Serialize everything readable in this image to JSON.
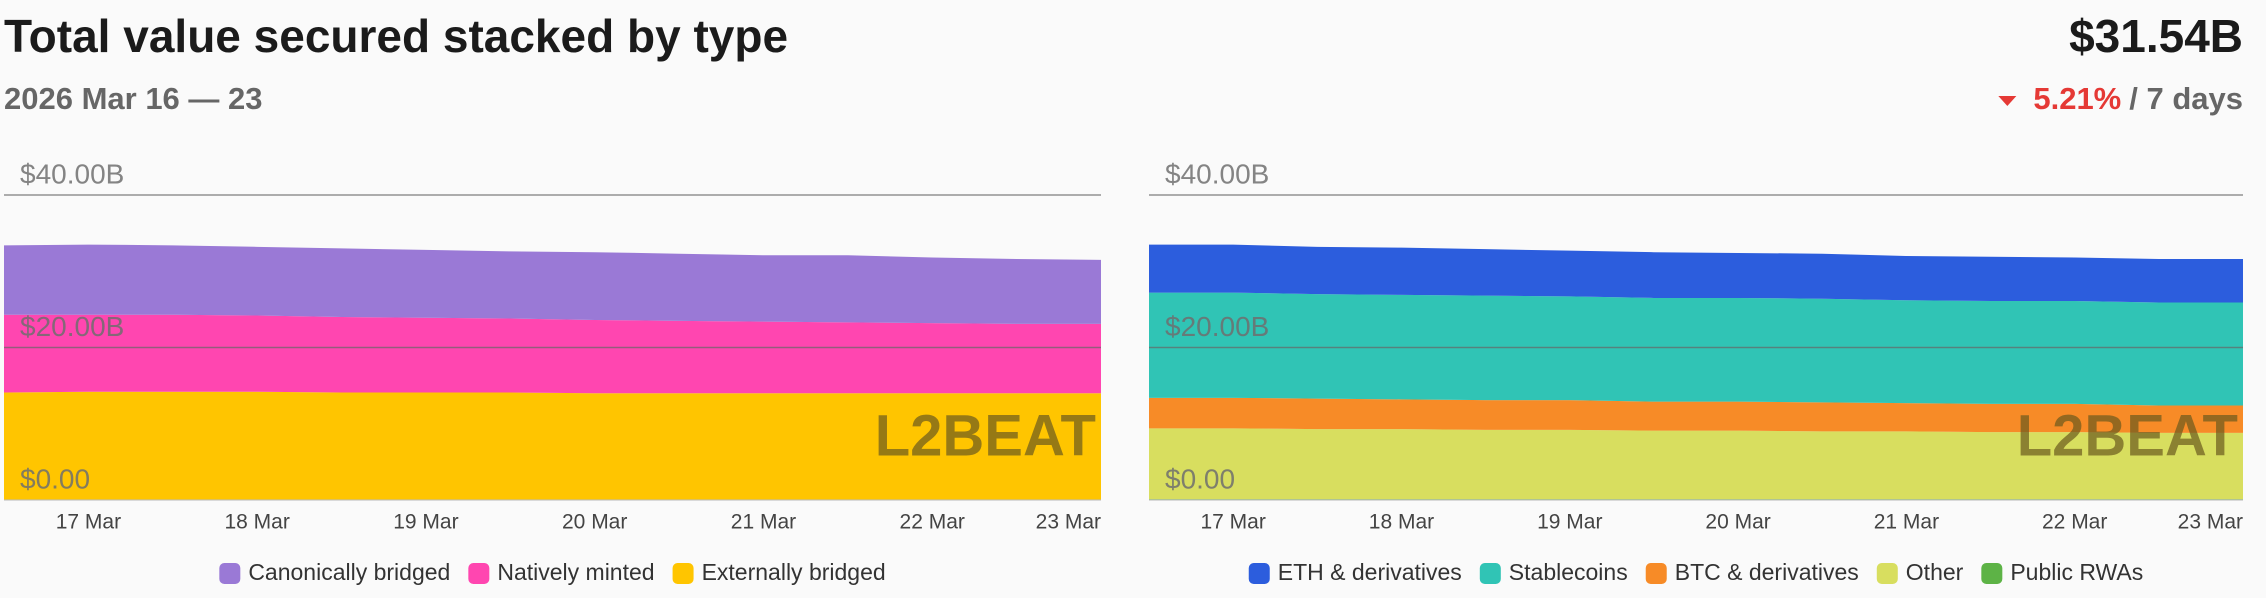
{
  "header": {
    "title": "Total value secured stacked by type",
    "subtitle": "2026 Mar 16 — 23",
    "value": "$31.54B",
    "change": "5.21%",
    "period": "/ 7 days"
  },
  "watermark": "L2BEAT",
  "chart_data": [
    {
      "type": "area",
      "categories": [
        null,
        "17 Mar",
        null,
        "18 Mar",
        null,
        "19 Mar",
        null,
        "20 Mar",
        null,
        "21 Mar",
        null,
        "22 Mar",
        null,
        "23 Mar"
      ],
      "series": [
        {
          "name": "Canonically bridged",
          "color": "#9a79d6",
          "values": [
            9.1,
            9.2,
            9.1,
            9.0,
            9.0,
            8.9,
            8.8,
            8.9,
            8.8,
            8.7,
            8.8,
            8.6,
            8.5,
            8.4
          ]
        },
        {
          "name": "Natively minted",
          "color": "#ff46b0",
          "values": [
            10.2,
            10.1,
            10.1,
            10.0,
            9.9,
            9.8,
            9.7,
            9.6,
            9.5,
            9.4,
            9.3,
            9.2,
            9.1,
            9.1
          ]
        },
        {
          "name": "Externally bridged",
          "color": "#ffc500",
          "values": [
            14.1,
            14.2,
            14.2,
            14.2,
            14.1,
            14.1,
            14.1,
            14.0,
            14.0,
            14.0,
            14.0,
            14.0,
            14.0,
            14.0
          ]
        }
      ],
      "ylim": [
        0,
        40
      ],
      "yticks": [
        {
          "value": 0,
          "label": "$0.00"
        },
        {
          "value": 20,
          "label": "$20.00B"
        },
        {
          "value": 40,
          "label": "$40.00B"
        }
      ],
      "grid": true
    },
    {
      "type": "area",
      "categories": [
        null,
        "17 Mar",
        null,
        "18 Mar",
        null,
        "19 Mar",
        null,
        "20 Mar",
        null,
        "21 Mar",
        null,
        "22 Mar",
        null,
        "23 Mar"
      ],
      "series": [
        {
          "name": "ETH & derivatives",
          "color": "#2c5ddd",
          "values": [
            6.3,
            6.3,
            6.2,
            6.2,
            6.1,
            6.0,
            6.0,
            5.9,
            5.9,
            5.8,
            5.8,
            5.7,
            5.7,
            5.7
          ]
        },
        {
          "name": "Stablecoins",
          "color": "#30c4b5",
          "values": [
            13.8,
            13.8,
            13.7,
            13.7,
            13.7,
            13.6,
            13.6,
            13.6,
            13.6,
            13.5,
            13.5,
            13.5,
            13.5,
            13.5
          ]
        },
        {
          "name": "BTC & derivatives",
          "color": "#f78b27",
          "values": [
            4.0,
            4.0,
            4.0,
            3.9,
            3.9,
            3.9,
            3.8,
            3.8,
            3.8,
            3.7,
            3.7,
            3.7,
            3.6,
            3.6
          ]
        },
        {
          "name": "Other",
          "color": "#d8de5f",
          "values": [
            9.3,
            9.3,
            9.2,
            9.2,
            9.1,
            9.1,
            9.0,
            9.0,
            8.9,
            8.9,
            8.8,
            8.8,
            8.7,
            8.7
          ]
        },
        {
          "name": "Public RWAs",
          "color": "#5db346",
          "values": [
            0.1,
            0.1,
            0.1,
            0.1,
            0.1,
            0.1,
            0.1,
            0.1,
            0.1,
            0.1,
            0.1,
            0.1,
            0.1,
            0.1
          ]
        }
      ],
      "ylim": [
        0,
        40
      ],
      "yticks": [
        {
          "value": 0,
          "label": "$0.00"
        },
        {
          "value": 20,
          "label": "$20.00B"
        },
        {
          "value": 40,
          "label": "$40.00B"
        }
      ],
      "grid": true
    }
  ]
}
